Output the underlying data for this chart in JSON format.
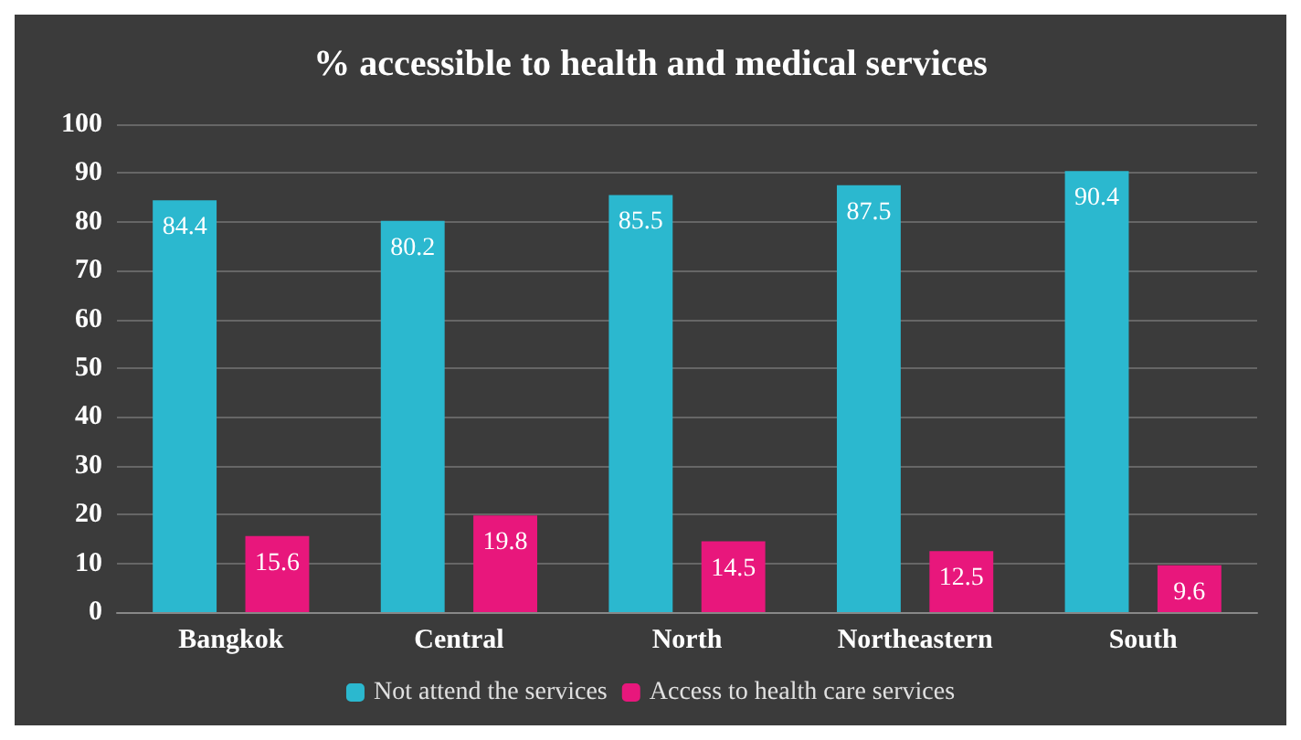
{
  "chart_data": {
    "type": "bar",
    "title": "% accessible to health and medical services",
    "categories": [
      "Bangkok",
      "Central",
      "North",
      "Northeastern",
      "South"
    ],
    "series": [
      {
        "name": "Not attend the services",
        "color": "#2bb8cf",
        "values": [
          84.4,
          80.2,
          85.5,
          87.5,
          90.4
        ]
      },
      {
        "name": "Access to health care services",
        "color": "#e8177c",
        "values": [
          15.6,
          19.8,
          14.5,
          12.5,
          9.6
        ]
      }
    ],
    "ylim": [
      0,
      100
    ],
    "yticks": [
      0,
      10,
      20,
      30,
      40,
      50,
      60,
      70,
      80,
      90,
      100
    ],
    "grid": "y",
    "legend": "bottom",
    "data_labels": true
  }
}
